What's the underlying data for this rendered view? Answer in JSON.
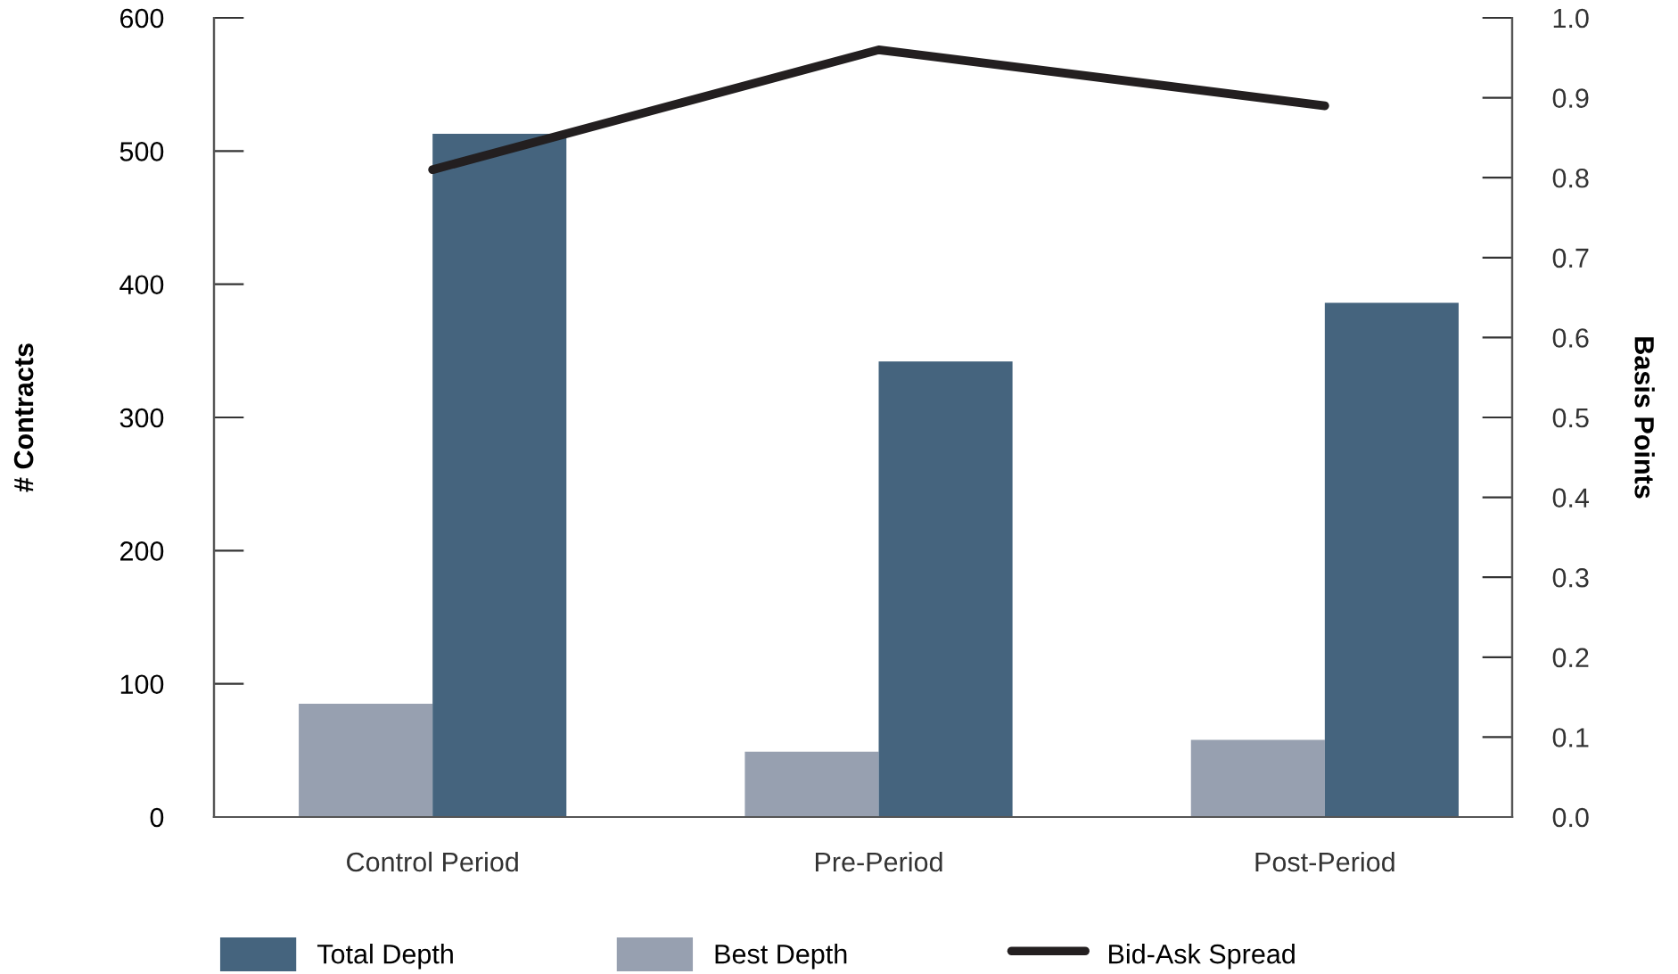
{
  "chart_data": {
    "type": "bar",
    "ylabel": "# Contracts",
    "y2label": "Basis Points",
    "categories": [
      "Control Period",
      "Pre-Period",
      "Post-Period"
    ],
    "series": [
      {
        "name": "Best Depth",
        "color": "#97a0b0",
        "values": [
          85,
          49,
          58
        ]
      },
      {
        "name": "Total Depth",
        "color": "#45647e",
        "values": [
          513,
          342,
          386
        ]
      },
      {
        "name": "Bid-Ask Spread",
        "type": "line",
        "axis": "y2",
        "color": "#231f20",
        "values": [
          0.81,
          0.96,
          0.89
        ]
      }
    ],
    "ylim": [
      0,
      600
    ],
    "yticks": [
      0,
      100,
      200,
      300,
      400,
      500,
      600
    ],
    "y2lim": [
      0,
      1.0
    ],
    "y2ticks": [
      {
        "value": 0,
        "label": "0.0"
      },
      0.1,
      0.2,
      0.3,
      0.4,
      0.5,
      0.6,
      0.7,
      0.8,
      0.9,
      {
        "value": 1.0,
        "label": "1.0"
      }
    ],
    "legend": "bottom",
    "grid": false
  }
}
